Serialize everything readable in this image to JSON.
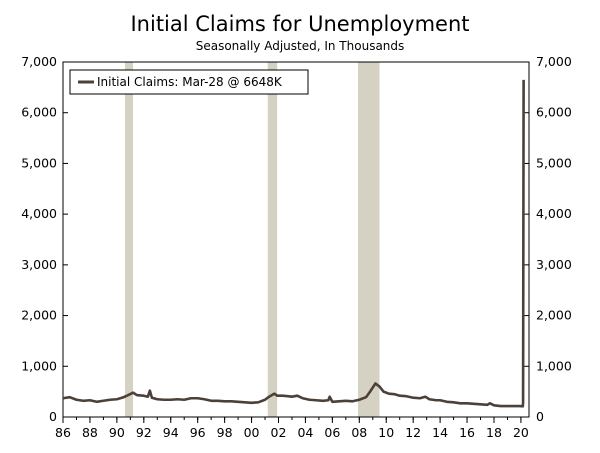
{
  "chart_data": {
    "type": "line",
    "title": "Initial Claims for Unemployment",
    "subtitle": "Seasonally Adjusted, In Thousands",
    "xlabel": "",
    "ylabel": "",
    "xlim": [
      1986,
      2020.6
    ],
    "ylim": [
      0,
      7000
    ],
    "y_ticks": [
      0,
      1000,
      2000,
      3000,
      4000,
      5000,
      6000,
      7000
    ],
    "y_tick_labels": [
      "0",
      "1,000",
      "2,000",
      "3,000",
      "4,000",
      "5,000",
      "6,000",
      "7,000"
    ],
    "x_ticks": [
      1986,
      1988,
      1990,
      1992,
      1994,
      1996,
      1998,
      2000,
      2002,
      2004,
      2006,
      2008,
      2010,
      2012,
      2014,
      2016,
      2018,
      2020
    ],
    "x_tick_labels": [
      "86",
      "88",
      "90",
      "92",
      "94",
      "96",
      "98",
      "00",
      "02",
      "04",
      "06",
      "08",
      "10",
      "12",
      "14",
      "16",
      "18",
      "20"
    ],
    "grid": false,
    "legend_position": "top-left",
    "recessions": [
      {
        "start": 1990.6,
        "end": 1991.2
      },
      {
        "start": 2001.2,
        "end": 2001.9
      },
      {
        "start": 2007.9,
        "end": 2009.5
      }
    ],
    "series": [
      {
        "name": "Initial Claims: Mar-28 @ 6648K",
        "color": "#4d4039",
        "points": [
          [
            1986.0,
            370
          ],
          [
            1986.5,
            390
          ],
          [
            1987.0,
            340
          ],
          [
            1987.5,
            320
          ],
          [
            1988.0,
            330
          ],
          [
            1988.5,
            300
          ],
          [
            1989.0,
            320
          ],
          [
            1989.5,
            340
          ],
          [
            1990.0,
            350
          ],
          [
            1990.5,
            390
          ],
          [
            1990.9,
            440
          ],
          [
            1991.2,
            480
          ],
          [
            1991.5,
            430
          ],
          [
            1992.0,
            420
          ],
          [
            1992.3,
            400
          ],
          [
            1992.45,
            520
          ],
          [
            1992.6,
            380
          ],
          [
            1993.0,
            350
          ],
          [
            1993.5,
            340
          ],
          [
            1994.0,
            340
          ],
          [
            1994.5,
            350
          ],
          [
            1995.0,
            340
          ],
          [
            1995.5,
            370
          ],
          [
            1996.0,
            370
          ],
          [
            1996.5,
            350
          ],
          [
            1997.0,
            320
          ],
          [
            1997.5,
            320
          ],
          [
            1998.0,
            310
          ],
          [
            1998.5,
            310
          ],
          [
            1999.0,
            300
          ],
          [
            1999.5,
            290
          ],
          [
            2000.0,
            280
          ],
          [
            2000.5,
            290
          ],
          [
            2001.0,
            340
          ],
          [
            2001.3,
            400
          ],
          [
            2001.7,
            460
          ],
          [
            2001.9,
            420
          ],
          [
            2002.3,
            420
          ],
          [
            2002.7,
            410
          ],
          [
            2003.0,
            400
          ],
          [
            2003.4,
            420
          ],
          [
            2003.8,
            370
          ],
          [
            2004.3,
            340
          ],
          [
            2004.8,
            330
          ],
          [
            2005.3,
            320
          ],
          [
            2005.7,
            330
          ],
          [
            2005.8,
            400
          ],
          [
            2006.0,
            300
          ],
          [
            2006.5,
            310
          ],
          [
            2007.0,
            320
          ],
          [
            2007.5,
            310
          ],
          [
            2008.0,
            340
          ],
          [
            2008.5,
            390
          ],
          [
            2008.8,
            500
          ],
          [
            2009.0,
            580
          ],
          [
            2009.2,
            660
          ],
          [
            2009.5,
            600
          ],
          [
            2009.8,
            500
          ],
          [
            2010.2,
            460
          ],
          [
            2010.6,
            450
          ],
          [
            2011.0,
            420
          ],
          [
            2011.5,
            410
          ],
          [
            2012.0,
            380
          ],
          [
            2012.5,
            370
          ],
          [
            2012.9,
            400
          ],
          [
            2013.2,
            350
          ],
          [
            2013.7,
            330
          ],
          [
            2014.0,
            330
          ],
          [
            2014.5,
            300
          ],
          [
            2015.0,
            290
          ],
          [
            2015.5,
            270
          ],
          [
            2016.0,
            270
          ],
          [
            2016.5,
            260
          ],
          [
            2017.0,
            250
          ],
          [
            2017.5,
            240
          ],
          [
            2017.7,
            270
          ],
          [
            2018.0,
            230
          ],
          [
            2018.5,
            215
          ],
          [
            2019.0,
            215
          ],
          [
            2019.5,
            215
          ],
          [
            2019.9,
            215
          ],
          [
            2020.14,
            210
          ],
          [
            2020.16,
            280
          ],
          [
            2020.18,
            3307
          ],
          [
            2020.2,
            6648
          ]
        ]
      }
    ]
  }
}
